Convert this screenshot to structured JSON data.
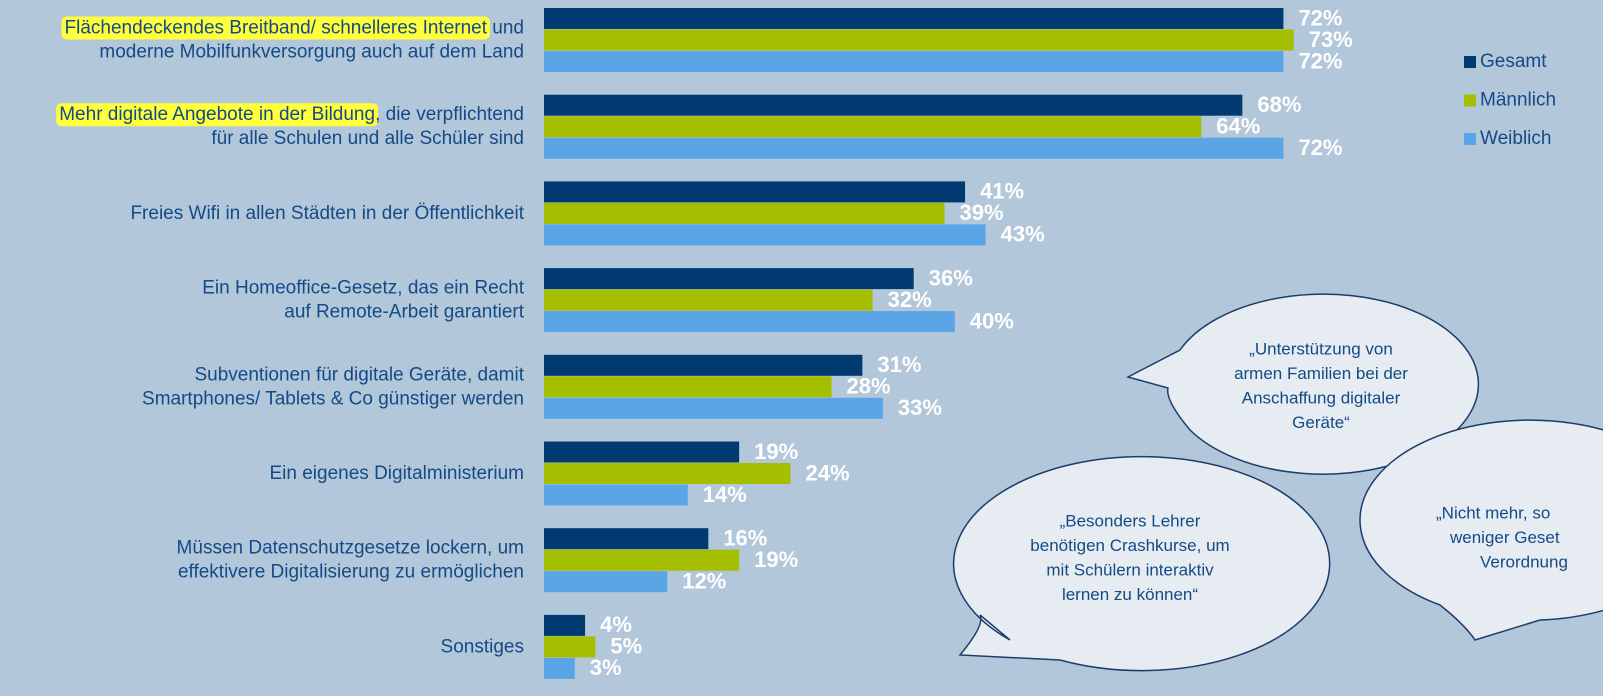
{
  "chart_data": {
    "type": "hbar",
    "categories": [
      [
        [
          {
            "text": "Flächendeckendes Breitband/ schnelleres Internet",
            "highlight": true
          },
          {
            "text": " und"
          }
        ],
        [
          {
            "text": "moderne Mobilfunkversorgung auch auf dem Land"
          }
        ]
      ],
      [
        [
          {
            "text": "Mehr digitale Angebote in der Bildung",
            "highlight": true
          },
          {
            "text": ", die verpflichtend"
          }
        ],
        [
          {
            "text": "für alle Schulen und alle Schüler sind"
          }
        ]
      ],
      [
        [
          {
            "text": "Freies Wifi in allen Städten in der Öffentlichkeit"
          }
        ]
      ],
      [
        [
          {
            "text": "Ein Homeoffice-Gesetz, das ein Recht"
          }
        ],
        [
          {
            "text": "auf Remote-Arbeit garantiert"
          }
        ]
      ],
      [
        [
          {
            "text": "Subventionen für digitale Geräte, damit"
          }
        ],
        [
          {
            "text": "Smartphones/ Tablets & Co günstiger werden"
          }
        ]
      ],
      [
        [
          {
            "text": "Ein eigenes Digitalministerium"
          }
        ]
      ],
      [
        [
          {
            "text": "Müssen Datenschutzgesetze lockern, um"
          }
        ],
        [
          {
            "text": "effektivere Digitalisierung zu ermöglichen"
          }
        ]
      ],
      [
        [
          {
            "text": "Sonstiges"
          }
        ]
      ]
    ],
    "series": [
      {
        "name": "Gesamt",
        "color": "#003a70",
        "values": [
          72,
          68,
          41,
          36,
          31,
          19,
          16,
          4
        ],
        "value_labels": [
          "72%",
          "68%",
          "41%",
          "36%",
          "31%",
          "19%",
          "16%",
          "4%"
        ]
      },
      {
        "name": "Männlich",
        "color": "#a5bf00",
        "values": [
          73,
          64,
          39,
          32,
          28,
          24,
          19,
          5
        ],
        "value_labels": [
          "73%",
          "64%",
          "39%",
          "32%",
          "28%",
          "24%",
          "19%",
          "5%"
        ]
      },
      {
        "name": "Weiblich",
        "color": "#5aa5e6",
        "values": [
          72,
          72,
          43,
          40,
          33,
          14,
          12,
          3
        ],
        "value_labels": [
          "72%",
          "72%",
          "43%",
          "40%",
          "33%",
          "14%",
          "12%",
          "3%"
        ]
      }
    ],
    "xlim": [
      0,
      100
    ],
    "highlight_color": "#ffff3c",
    "annotations": [
      {
        "lines": [
          "„Unterstützung von",
          "armen Familien bei der",
          "Anschaffung digitaler",
          "Geräte“"
        ]
      },
      {
        "lines": [
          "„Besonders Lehrer",
          "benötigen Crashkurse, um",
          "mit Schülern interaktiv",
          "lernen zu können“"
        ]
      },
      {
        "lines": [
          "„Nicht mehr, so",
          "weniger Geset",
          "Verordnung"
        ]
      }
    ]
  }
}
